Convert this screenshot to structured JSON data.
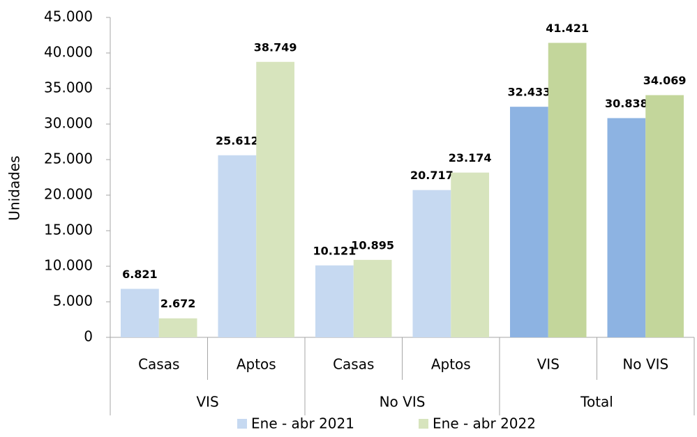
{
  "chart_data": {
    "type": "bar",
    "y_label": "Unidades",
    "groups": [
      {
        "name": "VIS",
        "categories": [
          "Casas",
          "Aptos"
        ]
      },
      {
        "name": "No VIS",
        "categories": [
          "Casas",
          "Aptos"
        ]
      },
      {
        "name": "Total",
        "categories": [
          "VIS",
          "No VIS"
        ]
      }
    ],
    "series": [
      {
        "name": "Ene - abr 2021",
        "color": "#c6d9f1",
        "colors": [
          "#c6d9f1",
          "#c6d9f1",
          "#c6d9f1",
          "#c6d9f1",
          "#8db3e2",
          "#8db3e2"
        ],
        "label_color": "#31657a",
        "values": [
          6821,
          25612,
          10121,
          20717,
          32433,
          30838
        ],
        "value_labels": [
          "6.821",
          "25.612",
          "10.121",
          "20.717",
          "32.433",
          "30.838"
        ]
      },
      {
        "name": "Ene - abr 2022",
        "color": "#d7e4bd",
        "colors": [
          "#d7e4bd",
          "#d7e4bd",
          "#d7e4bd",
          "#d7e4bd",
          "#c3d69b",
          "#c3d69b"
        ],
        "label_color": "#6b7f2e",
        "values": [
          2672,
          38749,
          10895,
          23174,
          41421,
          34069
        ],
        "value_labels": [
          "2.672",
          "38.749",
          "10.895",
          "23.174",
          "41.421",
          "34.069"
        ]
      }
    ],
    "ylim": [
      0,
      45000
    ],
    "yticks": [
      0,
      {
        "value": 5000,
        "label": "5.000"
      },
      {
        "value": 10000,
        "label": "10.000"
      },
      {
        "value": 15000,
        "label": "15.000"
      },
      {
        "value": 20000,
        "label": "20.000"
      },
      {
        "value": 25000,
        "label": "25.000"
      },
      {
        "value": 30000,
        "label": "30.000"
      },
      {
        "value": 35000,
        "label": "35.000"
      },
      {
        "value": 40000,
        "label": "40.000"
      },
      {
        "value": 45000,
        "label": "45.000"
      }
    ],
    "grid": false,
    "legend": "bottom"
  }
}
